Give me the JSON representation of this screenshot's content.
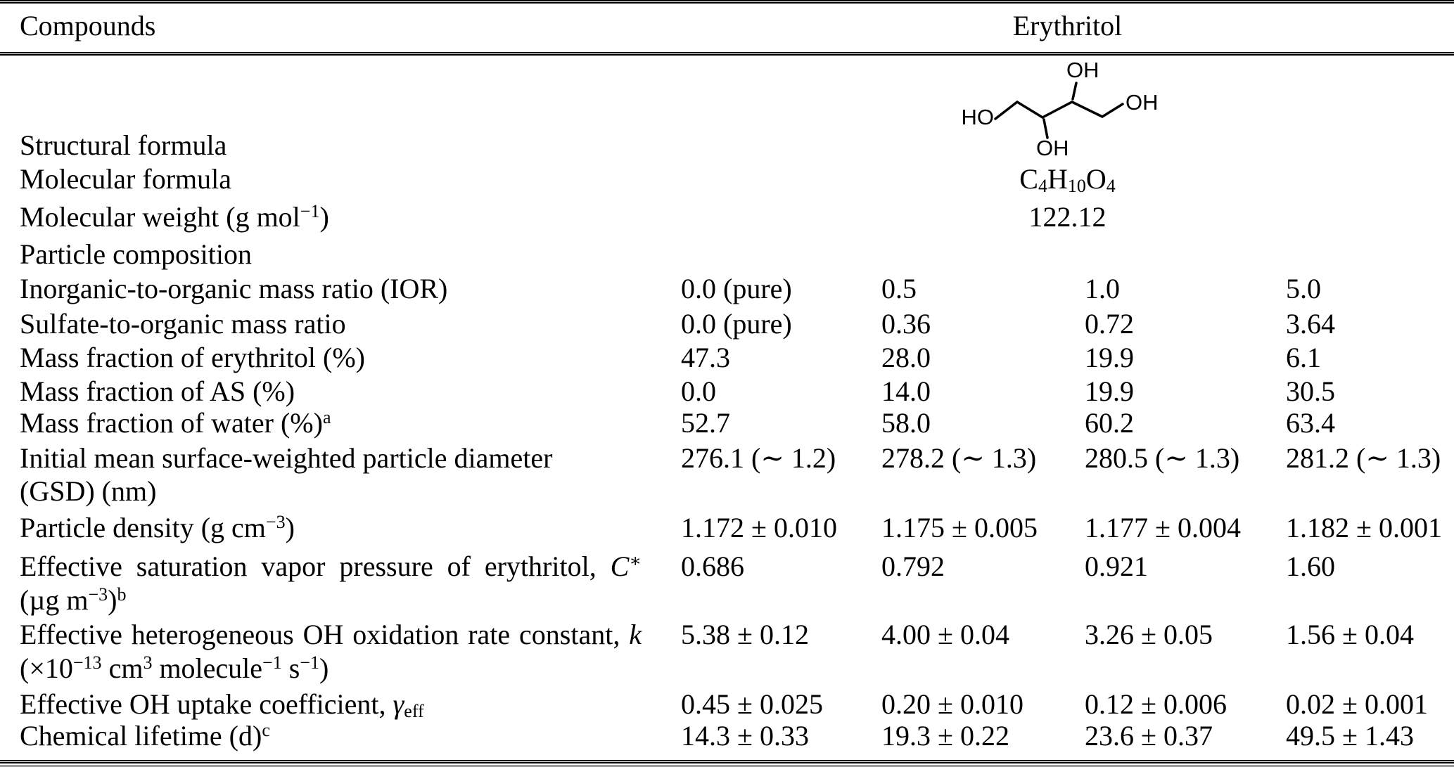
{
  "header": {
    "compounds": "Compounds",
    "erythritol": "Erythritol"
  },
  "molecule": {
    "labels": {
      "ho_left": "HO",
      "oh_top": "OH",
      "oh_bottom": "OH",
      "oh_right": "OH"
    },
    "formula": [
      {
        "k": "t",
        "v": "C"
      },
      {
        "k": "sub",
        "v": "4"
      },
      {
        "k": "t",
        "v": "H"
      },
      {
        "k": "sub",
        "v": "10"
      },
      {
        "k": "t",
        "v": "O"
      },
      {
        "k": "sub",
        "v": "4"
      }
    ],
    "weight": "122.12"
  },
  "rows": {
    "structural": {
      "label": [
        {
          "k": "t",
          "v": "Structural formula"
        }
      ]
    },
    "mol_formula": {
      "label": [
        {
          "k": "t",
          "v": "Molecular formula"
        }
      ]
    },
    "mol_weight": {
      "label": [
        {
          "k": "t",
          "v": "Molecular weight (g mol"
        },
        {
          "k": "sup",
          "v": "−1"
        },
        {
          "k": "t",
          "v": ")"
        }
      ]
    },
    "particle_composition": {
      "label": [
        {
          "k": "t",
          "v": "Particle composition"
        }
      ]
    },
    "ior": {
      "label": [
        {
          "k": "t",
          "v": "Inorganic-to-organic mass ratio (IOR)"
        }
      ],
      "values": [
        "0.0 (pure)",
        "0.5",
        "1.0",
        "5.0"
      ]
    },
    "sulfate_ratio": {
      "label": [
        {
          "k": "t",
          "v": "Sulfate-to-organic mass ratio"
        }
      ],
      "values": [
        "0.0 (pure)",
        "0.36",
        "0.72",
        "3.64"
      ]
    },
    "mf_erythritol": {
      "label": [
        {
          "k": "t",
          "v": "Mass fraction of erythritol (%)"
        }
      ],
      "values": [
        "47.3",
        "28.0",
        "19.9",
        "6.1"
      ]
    },
    "mf_as": {
      "label": [
        {
          "k": "t",
          "v": "Mass fraction of AS (%)"
        }
      ],
      "values": [
        "0.0",
        "14.0",
        "19.9",
        "30.5"
      ]
    },
    "mf_water": {
      "label": [
        {
          "k": "t",
          "v": "Mass fraction of water (%)"
        },
        {
          "k": "sup",
          "v": "a"
        }
      ],
      "values": [
        "52.7",
        "58.0",
        "60.2",
        "63.4"
      ]
    },
    "diameter": {
      "label": [
        {
          "k": "t",
          "v": "Initial mean surface-weighted particle diameter"
        }
      ],
      "label2": [
        {
          "k": "t",
          "v": "(GSD) (nm)"
        }
      ],
      "values": [
        "276.1 (∼ 1.2)",
        "278.2 (∼ 1.3)",
        "280.5 (∼ 1.3)",
        "281.2 (∼ 1.3)"
      ]
    },
    "density": {
      "label": [
        {
          "k": "t",
          "v": "Particle density (g cm"
        },
        {
          "k": "sup",
          "v": "−3"
        },
        {
          "k": "t",
          "v": ")"
        }
      ],
      "values": [
        "1.172 ± 0.010",
        "1.175 ± 0.005",
        "1.177 ± 0.004",
        "1.182 ± 0.001"
      ]
    },
    "vapor_pressure": {
      "label": [
        {
          "k": "t",
          "v": "Effective saturation vapor pressure of erythritol, "
        },
        {
          "k": "i",
          "v": "C"
        },
        {
          "k": "sup",
          "v": "∗"
        }
      ],
      "label2": [
        {
          "k": "t",
          "v": "(µg m"
        },
        {
          "k": "sup",
          "v": "−3"
        },
        {
          "k": "t",
          "v": ")"
        },
        {
          "k": "sup",
          "v": "b"
        }
      ],
      "values": [
        "0.686",
        "0.792",
        "0.921",
        "1.60"
      ]
    },
    "oxidation_rate": {
      "label": [
        {
          "k": "t",
          "v": "Effective heterogeneous OH oxidation rate constant, "
        },
        {
          "k": "i",
          "v": "k"
        }
      ],
      "label2": [
        {
          "k": "t",
          "v": "(×10"
        },
        {
          "k": "sup",
          "v": "−13"
        },
        {
          "k": "t",
          "v": " cm"
        },
        {
          "k": "sup",
          "v": "3"
        },
        {
          "k": "t",
          "v": " molecule"
        },
        {
          "k": "sup",
          "v": "−1"
        },
        {
          "k": "t",
          "v": " s"
        },
        {
          "k": "sup",
          "v": "−1"
        },
        {
          "k": "t",
          "v": ")"
        }
      ],
      "values": [
        "5.38 ± 0.12",
        "4.00 ± 0.04",
        "3.26 ± 0.05",
        "1.56 ± 0.04"
      ]
    },
    "uptake": {
      "label": [
        {
          "k": "t",
          "v": "Effective OH uptake coefficient, "
        },
        {
          "k": "i",
          "v": "γ"
        },
        {
          "k": "sub",
          "v": "eff"
        }
      ],
      "values": [
        "0.45 ± 0.025",
        "0.20 ± 0.010",
        "0.12 ± 0.006",
        "0.02 ± 0.001"
      ]
    },
    "lifetime": {
      "label": [
        {
          "k": "t",
          "v": "Chemical lifetime (d)"
        },
        {
          "k": "sup",
          "v": "c"
        }
      ],
      "values": [
        "14.3 ± 0.33",
        "19.3 ± 0.22",
        "23.6 ± 0.37",
        "49.5 ± 1.43"
      ]
    }
  }
}
